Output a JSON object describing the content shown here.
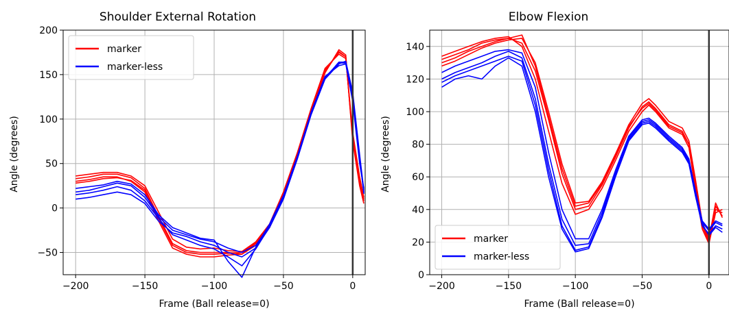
{
  "chart_data": [
    {
      "type": "line",
      "title": "Shoulder External Rotation",
      "xlabel": "Frame (Ball release=0)",
      "ylabel": "Angle (degrees)",
      "xlim": [
        -209,
        9
      ],
      "ylim": [
        -75,
        200
      ],
      "xticks": [
        -200,
        -150,
        -100,
        -50,
        0
      ],
      "yticks": [
        -50,
        0,
        50,
        100,
        150,
        200
      ],
      "xtick_labels": [
        "−200",
        "−150",
        "−100",
        "−50",
        "0"
      ],
      "ytick_labels": [
        "−50",
        "0",
        "50",
        "100",
        "150",
        "200"
      ],
      "grid": true,
      "legend": {
        "placement": "upper-left",
        "entries": [
          "marker",
          "marker-less"
        ]
      },
      "vline_x": 0,
      "series": [
        {
          "name": "marker",
          "color": "#ff0000",
          "x": [
            -200,
            -190,
            -180,
            -170,
            -160,
            -150,
            -140,
            -130,
            -120,
            -110,
            -100,
            -90,
            -80,
            -70,
            -60,
            -50,
            -40,
            -30,
            -20,
            -10,
            -5,
            0,
            5,
            8
          ],
          "y": [
            33,
            35,
            38,
            38,
            34,
            22,
            -10,
            -40,
            -48,
            -50,
            -50,
            -50,
            -52,
            -40,
            -20,
            15,
            60,
            110,
            155,
            175,
            170,
            80,
            30,
            10
          ]
        },
        {
          "name": "marker",
          "color": "#ff0000",
          "x": [
            -200,
            -190,
            -180,
            -170,
            -160,
            -150,
            -140,
            -130,
            -120,
            -110,
            -100,
            -90,
            -80,
            -70,
            -60,
            -50,
            -40,
            -30,
            -20,
            -10,
            -5,
            0,
            5,
            8
          ],
          "y": [
            30,
            32,
            35,
            35,
            30,
            18,
            -15,
            -45,
            -52,
            -55,
            -55,
            -53,
            -52,
            -42,
            -22,
            12,
            58,
            108,
            152,
            178,
            172,
            75,
            25,
            5
          ]
        },
        {
          "name": "marker",
          "color": "#ff0000",
          "x": [
            -200,
            -190,
            -180,
            -170,
            -160,
            -150,
            -140,
            -130,
            -120,
            -110,
            -100,
            -90,
            -80,
            -70,
            -60,
            -50,
            -40,
            -30,
            -20,
            -10,
            -5,
            0,
            5,
            8
          ],
          "y": [
            36,
            38,
            40,
            40,
            36,
            25,
            -5,
            -35,
            -44,
            -46,
            -45,
            -48,
            -49,
            -38,
            -18,
            18,
            62,
            112,
            157,
            173,
            168,
            85,
            35,
            12
          ]
        },
        {
          "name": "marker",
          "color": "#ff0000",
          "x": [
            -200,
            -190,
            -180,
            -170,
            -160,
            -150,
            -140,
            -130,
            -120,
            -110,
            -100,
            -90,
            -80,
            -70,
            -60,
            -50,
            -40,
            -30,
            -20,
            -10,
            -5,
            0,
            5,
            8
          ],
          "y": [
            28,
            30,
            33,
            34,
            31,
            20,
            -12,
            -42,
            -50,
            -52,
            -52,
            -51,
            -50,
            -39,
            -19,
            14,
            59,
            109,
            153,
            176,
            170,
            78,
            28,
            8
          ]
        },
        {
          "name": "marker-less",
          "color": "#0000ff",
          "x": [
            -200,
            -190,
            -180,
            -170,
            -160,
            -150,
            -140,
            -130,
            -120,
            -110,
            -100,
            -90,
            -80,
            -70,
            -60,
            -50,
            -40,
            -30,
            -20,
            -10,
            -5,
            0,
            5,
            8
          ],
          "y": [
            10,
            12,
            15,
            18,
            15,
            5,
            -15,
            -28,
            -32,
            -38,
            -42,
            -50,
            -55,
            -45,
            -22,
            10,
            55,
            105,
            145,
            162,
            165,
            130,
            60,
            20
          ]
        },
        {
          "name": "marker-less",
          "color": "#0000ff",
          "x": [
            -200,
            -190,
            -180,
            -170,
            -160,
            -150,
            -140,
            -130,
            -120,
            -110,
            -100,
            -90,
            -80,
            -70,
            -60,
            -50,
            -40,
            -30,
            -20,
            -10,
            -5,
            0,
            5,
            8
          ],
          "y": [
            18,
            20,
            24,
            28,
            25,
            12,
            -10,
            -25,
            -30,
            -35,
            -38,
            -45,
            -50,
            -42,
            -20,
            12,
            57,
            107,
            147,
            163,
            163,
            125,
            55,
            18
          ]
        },
        {
          "name": "marker-less",
          "color": "#0000ff",
          "x": [
            -200,
            -190,
            -180,
            -170,
            -160,
            -150,
            -140,
            -130,
            -120,
            -110,
            -100,
            -90,
            -80,
            -70,
            -60,
            -50,
            -40,
            -30,
            -20,
            -10,
            -5,
            0,
            5,
            8
          ],
          "y": [
            22,
            24,
            26,
            30,
            27,
            15,
            -8,
            -22,
            -28,
            -34,
            -36,
            -60,
            -78,
            -44,
            -18,
            14,
            58,
            108,
            148,
            160,
            162,
            120,
            50,
            22
          ]
        },
        {
          "name": "marker-less",
          "color": "#0000ff",
          "x": [
            -200,
            -190,
            -180,
            -170,
            -160,
            -150,
            -140,
            -130,
            -120,
            -110,
            -100,
            -90,
            -80,
            -70,
            -60,
            -50,
            -40,
            -30,
            -20,
            -10,
            -5,
            0,
            5,
            8
          ],
          "y": [
            15,
            17,
            20,
            24,
            20,
            8,
            -12,
            -30,
            -36,
            -42,
            -46,
            -55,
            -65,
            -46,
            -21,
            11,
            56,
            106,
            146,
            164,
            164,
            128,
            58,
            16
          ]
        }
      ]
    },
    {
      "type": "line",
      "title": "Elbow Flexion",
      "xlabel": "Frame (Ball release=0)",
      "ylabel": "Angle (degrees)",
      "xlim": [
        -209,
        15
      ],
      "ylim": [
        0,
        150
      ],
      "xticks": [
        -200,
        -150,
        -100,
        -50,
        0
      ],
      "yticks": [
        0,
        20,
        40,
        60,
        80,
        100,
        120,
        140
      ],
      "xtick_labels": [
        "−200",
        "−150",
        "−100",
        "−50",
        "0"
      ],
      "ytick_labels": [
        "0",
        "20",
        "40",
        "60",
        "80",
        "100",
        "120",
        "140"
      ],
      "grid": true,
      "legend": {
        "placement": "lower-left",
        "entries": [
          "marker",
          "marker-less"
        ]
      },
      "vline_x": 0,
      "series": [
        {
          "name": "marker",
          "color": "#ff0000",
          "x": [
            -200,
            -190,
            -180,
            -170,
            -160,
            -150,
            -140,
            -130,
            -120,
            -110,
            -100,
            -90,
            -80,
            -70,
            -60,
            -50,
            -45,
            -40,
            -30,
            -20,
            -15,
            -10,
            -5,
            0,
            5,
            10
          ],
          "y": [
            132,
            135,
            138,
            142,
            144,
            145,
            142,
            125,
            95,
            62,
            40,
            42,
            55,
            72,
            90,
            103,
            106,
            102,
            92,
            88,
            80,
            55,
            30,
            20,
            40,
            38
          ]
        },
        {
          "name": "marker",
          "color": "#ff0000",
          "x": [
            -200,
            -190,
            -180,
            -170,
            -160,
            -150,
            -140,
            -130,
            -120,
            -110,
            -100,
            -90,
            -80,
            -70,
            -60,
            -50,
            -45,
            -40,
            -30,
            -20,
            -15,
            -10,
            -5,
            0,
            5,
            10
          ],
          "y": [
            128,
            131,
            135,
            139,
            142,
            144,
            145,
            130,
            100,
            68,
            44,
            45,
            57,
            74,
            92,
            105,
            108,
            104,
            94,
            90,
            82,
            58,
            32,
            22,
            44,
            35
          ]
        },
        {
          "name": "marker",
          "color": "#ff0000",
          "x": [
            -200,
            -190,
            -180,
            -170,
            -160,
            -150,
            -140,
            -130,
            -120,
            -110,
            -100,
            -90,
            -80,
            -70,
            -60,
            -50,
            -45,
            -40,
            -30,
            -20,
            -15,
            -10,
            -5,
            0,
            5,
            10
          ],
          "y": [
            134,
            137,
            140,
            143,
            145,
            146,
            140,
            120,
            88,
            56,
            37,
            40,
            53,
            70,
            88,
            100,
            104,
            100,
            90,
            86,
            78,
            52,
            28,
            19,
            38,
            40
          ]
        },
        {
          "name": "marker",
          "color": "#ff0000",
          "x": [
            -200,
            -190,
            -180,
            -170,
            -160,
            -150,
            -140,
            -130,
            -120,
            -110,
            -100,
            -90,
            -80,
            -70,
            -60,
            -50,
            -45,
            -40,
            -30,
            -20,
            -15,
            -10,
            -5,
            0,
            5,
            10
          ],
          "y": [
            130,
            133,
            137,
            140,
            143,
            145,
            147,
            128,
            97,
            65,
            42,
            44,
            56,
            73,
            91,
            102,
            105,
            101,
            91,
            87,
            80,
            56,
            30,
            21,
            42,
            36
          ]
        },
        {
          "name": "marker-less",
          "color": "#0000ff",
          "x": [
            -200,
            -190,
            -180,
            -170,
            -160,
            -150,
            -140,
            -130,
            -120,
            -110,
            -100,
            -90,
            -80,
            -70,
            -60,
            -50,
            -45,
            -40,
            -30,
            -20,
            -15,
            -10,
            -5,
            0,
            5,
            10
          ],
          "y": [
            115,
            120,
            122,
            120,
            128,
            133,
            128,
            100,
            60,
            28,
            14,
            16,
            35,
            60,
            82,
            92,
            93,
            90,
            82,
            75,
            68,
            48,
            30,
            25,
            30,
            28
          ]
        },
        {
          "name": "marker-less",
          "color": "#0000ff",
          "x": [
            -200,
            -190,
            -180,
            -170,
            -160,
            -150,
            -140,
            -130,
            -120,
            -110,
            -100,
            -90,
            -80,
            -70,
            -60,
            -50,
            -45,
            -40,
            -30,
            -20,
            -15,
            -10,
            -5,
            0,
            5,
            10
          ],
          "y": [
            120,
            124,
            127,
            130,
            134,
            137,
            133,
            108,
            68,
            34,
            18,
            19,
            38,
            62,
            84,
            94,
            95,
            92,
            84,
            77,
            70,
            50,
            32,
            27,
            32,
            30
          ]
        },
        {
          "name": "marker-less",
          "color": "#0000ff",
          "x": [
            -200,
            -190,
            -180,
            -170,
            -160,
            -150,
            -140,
            -130,
            -120,
            -110,
            -100,
            -90,
            -80,
            -70,
            -60,
            -50,
            -45,
            -40,
            -30,
            -20,
            -15,
            -10,
            -5,
            0,
            5,
            10
          ],
          "y": [
            124,
            128,
            131,
            134,
            137,
            138,
            136,
            115,
            75,
            40,
            22,
            22,
            40,
            64,
            85,
            95,
            96,
            93,
            85,
            78,
            71,
            51,
            33,
            28,
            33,
            31
          ]
        },
        {
          "name": "marker-less",
          "color": "#0000ff",
          "x": [
            -200,
            -190,
            -180,
            -170,
            -160,
            -150,
            -140,
            -130,
            -120,
            -110,
            -100,
            -90,
            -80,
            -70,
            -60,
            -50,
            -45,
            -40,
            -30,
            -20,
            -15,
            -10,
            -5,
            0,
            5,
            10
          ],
          "y": [
            118,
            122,
            125,
            128,
            131,
            134,
            131,
            104,
            64,
            30,
            15,
            17,
            36,
            61,
            83,
            93,
            94,
            91,
            83,
            76,
            69,
            49,
            31,
            24,
            29,
            26
          ]
        }
      ]
    }
  ]
}
